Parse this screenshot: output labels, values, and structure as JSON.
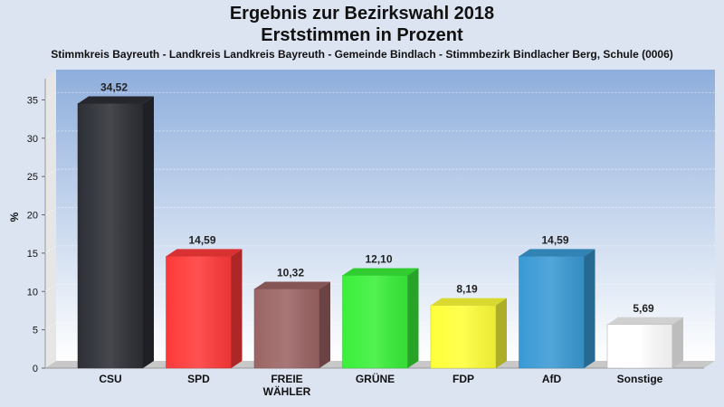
{
  "chart_data": {
    "type": "bar",
    "title": "Ergebnis zur Bezirkswahl 2018",
    "subtitle_line": "Erststimmen in Prozent",
    "subtitle": "Stimmkreis Bayreuth - Landkreis Landkreis Bayreuth - Gemeinde Bindlach - Stimmbezirk Bindlacher Berg, Schule (0006)",
    "ylabel": "%",
    "xlabel": "",
    "ylim": [
      0,
      38
    ],
    "yticks": [
      0,
      5,
      10,
      15,
      20,
      25,
      30,
      35
    ],
    "grid": true,
    "categories": [
      "CSU",
      "SPD",
      "FREIE WÄHLER",
      "GRÜNE",
      "FDP",
      "AfD",
      "Sonstige"
    ],
    "category_lines": [
      [
        "CSU"
      ],
      [
        "SPD"
      ],
      [
        "FREIE",
        "WÄHLER"
      ],
      [
        "GRÜNE"
      ],
      [
        "FDP"
      ],
      [
        "AfD"
      ],
      [
        "Sonstige"
      ]
    ],
    "values": [
      34.52,
      14.59,
      10.32,
      12.1,
      8.19,
      14.59,
      5.69
    ],
    "value_labels": [
      "34,52",
      "14,59",
      "10,32",
      "12,10",
      "8,19",
      "14,59",
      "5,69"
    ],
    "colors": [
      "#2d2f36",
      "#ff3a3a",
      "#9c6464",
      "#3af03a",
      "#ffff3a",
      "#3a9ad4",
      "#ffffff"
    ]
  }
}
